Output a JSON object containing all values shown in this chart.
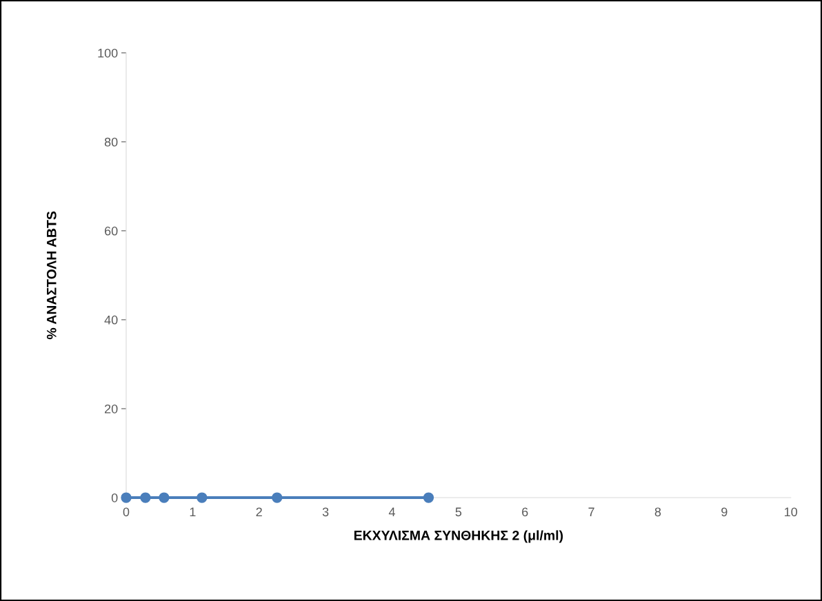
{
  "chart_data": {
    "type": "line",
    "xlabel": "ΕΚΧΥΛΙΣΜΑ ΣΥΝΘΗΚΗΣ 2 (μl/ml)",
    "ylabel": "% ΑΝΑΣΤΟΛΗ ABTS",
    "series": [
      {
        "color": "#4a7ebb",
        "x": [
          0,
          0.29,
          0.57,
          1.14,
          2.27,
          4.55
        ],
        "values": [
          0,
          0,
          0,
          0,
          0,
          0
        ]
      }
    ],
    "xlim": [
      0,
      10
    ],
    "xticks": [
      0,
      1,
      2,
      3,
      4,
      5,
      6,
      7,
      8,
      9,
      10
    ],
    "ylim": [
      0,
      100
    ],
    "yticks": [
      0,
      20,
      40,
      60,
      80,
      100
    ],
    "grid": false,
    "marker": "circle",
    "line_style": "solid"
  }
}
